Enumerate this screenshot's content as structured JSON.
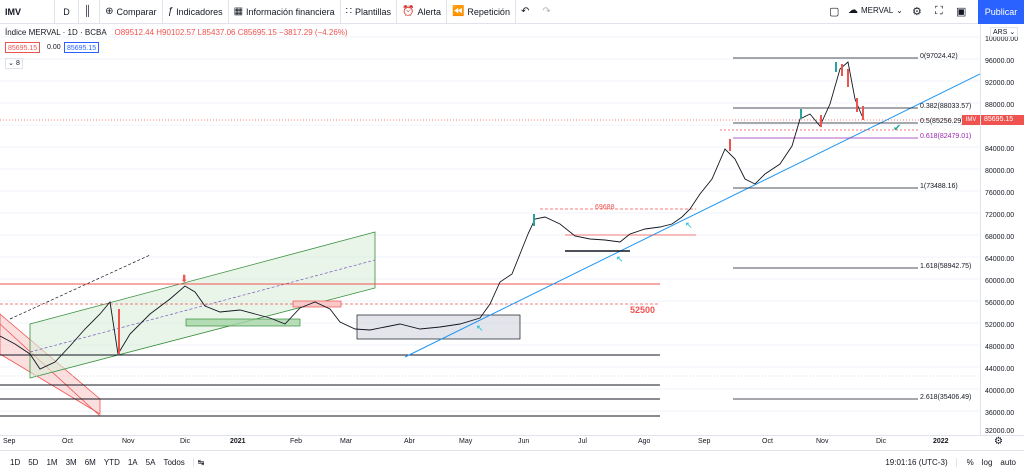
{
  "toolbar": {
    "symbol": "IMV",
    "interval": "D",
    "compare": "Comparar",
    "indicators": "Indicadores",
    "financials": "Información financiera",
    "templates": "Plantillas",
    "alert": "Alerta",
    "replay": "Repetición",
    "layout_name": "MERVAL",
    "publish": "Publicar",
    "icons": [
      "plus-circle-icon",
      "fx-icon",
      "grid-icon",
      "templates-icon",
      "alarm-clock-icon",
      "rewind-icon",
      "undo-icon",
      "redo-icon",
      "square-icon",
      "cloud-icon",
      "gear-icon",
      "fullscreen-icon",
      "camera-icon",
      "candles-icon"
    ]
  },
  "legend": {
    "title": "Índice MERVAL · 1D · BCBA",
    "ohlc": "O89512.44  H90102.57  L85437.06  C85695.15  −3817.29 (−4.26%)",
    "bid": "85695.15",
    "spread": "0.00",
    "ask": "85695.15",
    "collapse": "8"
  },
  "price_axis": {
    "currency": "ARS",
    "labels": [
      "100000.00",
      "96000.00",
      "92000.00",
      "88000.00",
      "84000.00",
      "80000.00",
      "76000.00",
      "72000.00",
      "68000.00",
      "64000.00",
      "60000.00",
      "56000.00",
      "52000.00",
      "48000.00",
      "44000.00",
      "40000.00",
      "36000.00",
      "32000.00"
    ],
    "current": "85695.15",
    "current_tag": "IMV"
  },
  "time_axis": {
    "labels": [
      "Sep",
      "Oct",
      "Nov",
      "Dic",
      "2021",
      "Feb",
      "Mar",
      "Abr",
      "May",
      "Jun",
      "Jul",
      "Ago",
      "Sep",
      "Oct",
      "Nov",
      "Dic",
      "2022"
    ]
  },
  "fib": {
    "levels": [
      {
        "label": "0(97024.42)"
      },
      {
        "label": "0.382(88033.57)"
      },
      {
        "label": "0.5(85256.29)"
      },
      {
        "label": "0.618(82479.01)"
      },
      {
        "label": "1(73488.16)"
      },
      {
        "label": "1.618(58942.75)"
      },
      {
        "label": "2.618(35406.49)"
      }
    ]
  },
  "annotations": {
    "level_69688": "69688",
    "level_52500": "52500"
  },
  "bottom": {
    "ranges": [
      "1D",
      "5D",
      "1M",
      "3M",
      "6M",
      "YTD",
      "1A",
      "5A",
      "Todos"
    ],
    "time": "19:01:16 (UTC-3)",
    "percent": "%",
    "log": "log",
    "auto": "auto"
  },
  "colors": {
    "up": "#26a69a",
    "down": "#ef5350",
    "accent": "#2962ff",
    "trendline": "#2196f3",
    "fib_618": "#9c27b0"
  }
}
